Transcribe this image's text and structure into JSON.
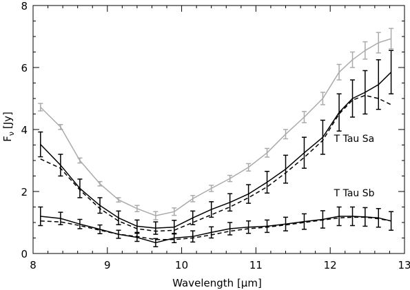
{
  "chart_data": {
    "type": "line",
    "xlabel": "Wavelength [μm]",
    "ylabel_main": "F",
    "ylabel_sub": "ν",
    "ylabel_unit": "[Jy]",
    "xlim": [
      8,
      13
    ],
    "ylim": [
      0,
      8
    ],
    "x_ticks": [
      8,
      9,
      10,
      11,
      12,
      13
    ],
    "x_minor_step": 0.2,
    "y_ticks": [
      0,
      2,
      4,
      6,
      8
    ],
    "y_minor_step": 0.5,
    "annotations": [
      {
        "text": "T Tau Sa",
        "x": 12.05,
        "y": 3.6
      },
      {
        "text": "T Tau Sb",
        "x": 12.05,
        "y": 1.85
      }
    ],
    "series": [
      {
        "style": "solid",
        "color": "#aaaaaa",
        "x": [
          8.1,
          8.37,
          8.63,
          8.9,
          9.15,
          9.4,
          9.65,
          9.9,
          10.15,
          10.4,
          10.65,
          10.9,
          11.15,
          11.4,
          11.65,
          11.9,
          12.12,
          12.3,
          12.47,
          12.65,
          12.82
        ],
        "y": [
          4.72,
          4.08,
          3.0,
          2.25,
          1.73,
          1.45,
          1.22,
          1.35,
          1.77,
          2.1,
          2.42,
          2.78,
          3.25,
          3.85,
          4.4,
          5.0,
          5.85,
          6.25,
          6.55,
          6.8,
          6.93
        ],
        "err": [
          0.12,
          0.08,
          0.08,
          0.07,
          0.07,
          0.1,
          0.13,
          0.12,
          0.1,
          0.1,
          0.1,
          0.12,
          0.14,
          0.15,
          0.18,
          0.2,
          0.25,
          0.25,
          0.28,
          0.33,
          0.33
        ]
      },
      {
        "style": "solid",
        "color": "#000000",
        "x": [
          8.1,
          8.37,
          8.63,
          8.9,
          9.15,
          9.4,
          9.65,
          9.9,
          10.15,
          10.4,
          10.65,
          10.9,
          11.15,
          11.4,
          11.65,
          11.9,
          12.12,
          12.3,
          12.47,
          12.65,
          12.82
        ],
        "y": [
          3.52,
          2.85,
          2.1,
          1.55,
          1.15,
          0.88,
          0.82,
          0.85,
          1.15,
          1.42,
          1.65,
          1.92,
          2.3,
          2.72,
          3.25,
          3.75,
          4.55,
          5.0,
          5.2,
          5.45,
          5.85
        ],
        "err": [
          0.4,
          0.35,
          0.3,
          0.25,
          0.22,
          0.2,
          0.2,
          0.22,
          0.22,
          0.25,
          0.28,
          0.3,
          0.35,
          0.45,
          0.5,
          0.55,
          0.6,
          0.6,
          0.7,
          0.8,
          0.7
        ]
      },
      {
        "style": "dashed",
        "color": "#000000",
        "x": [
          8.1,
          8.37,
          8.63,
          8.9,
          9.15,
          9.4,
          9.65,
          9.9,
          10.15,
          10.4,
          10.65,
          10.9,
          11.15,
          11.4,
          11.65,
          11.9,
          12.12,
          12.3,
          12.47,
          12.65,
          12.82
        ],
        "y": [
          3.05,
          2.75,
          2.05,
          1.45,
          1.05,
          0.8,
          0.72,
          0.75,
          1.0,
          1.25,
          1.5,
          1.8,
          2.15,
          2.6,
          3.1,
          3.65,
          4.5,
          4.95,
          5.1,
          5.0,
          4.8
        ]
      },
      {
        "style": "solid",
        "color": "#000000",
        "x": [
          8.1,
          8.37,
          8.63,
          8.9,
          9.15,
          9.4,
          9.65,
          9.9,
          10.15,
          10.4,
          10.65,
          10.9,
          11.15,
          11.4,
          11.65,
          11.9,
          12.12,
          12.3,
          12.47,
          12.65,
          12.82
        ],
        "y": [
          1.2,
          1.13,
          0.95,
          0.78,
          0.62,
          0.52,
          0.35,
          0.5,
          0.55,
          0.68,
          0.8,
          0.85,
          0.88,
          0.95,
          1.03,
          1.1,
          1.2,
          1.2,
          1.18,
          1.15,
          1.05
        ],
        "err": [
          0.3,
          0.2,
          0.15,
          0.14,
          0.13,
          0.13,
          0.13,
          0.15,
          0.18,
          0.18,
          0.2,
          0.2,
          0.2,
          0.22,
          0.25,
          0.28,
          0.3,
          0.3,
          0.3,
          0.3,
          0.3
        ]
      },
      {
        "style": "dashed",
        "color": "#000000",
        "x": [
          8.1,
          8.37,
          8.63,
          8.9,
          9.15,
          9.4,
          9.65,
          9.9,
          10.15,
          10.4,
          10.65,
          10.9,
          11.15,
          11.4,
          11.65,
          11.9,
          12.12,
          12.3,
          12.47,
          12.65,
          12.82
        ],
        "y": [
          1.05,
          1.02,
          0.9,
          0.75,
          0.62,
          0.55,
          0.45,
          0.45,
          0.5,
          0.6,
          0.72,
          0.8,
          0.85,
          0.92,
          1.0,
          1.08,
          1.15,
          1.17,
          1.17,
          1.12,
          1.05
        ]
      }
    ]
  }
}
